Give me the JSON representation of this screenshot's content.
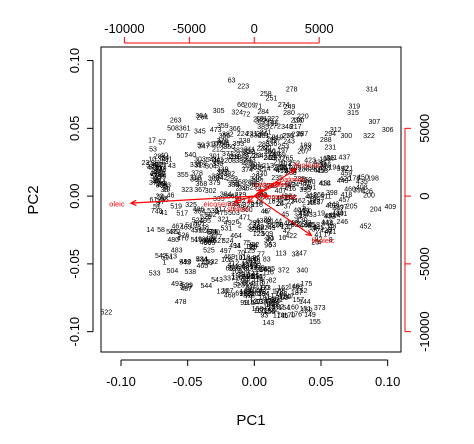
{
  "chart_data": {
    "type": "scatter",
    "title": "",
    "xlabel": "PC1",
    "ylabel": "PC2",
    "xlim": [
      -0.115,
      0.11
    ],
    "ylim": [
      -0.115,
      0.11
    ],
    "x_ticks": [
      -0.1,
      -0.05,
      0.0,
      0.05,
      0.1
    ],
    "x_tick_labels": [
      "-0.10",
      "-0.05",
      "0.00",
      "0.05",
      "0.10"
    ],
    "y_ticks": [
      -0.1,
      -0.05,
      0.0,
      0.05,
      0.1
    ],
    "y_tick_labels": [
      "-0.10",
      "-0.05",
      "0.00",
      "0.05",
      "0.10"
    ],
    "top_axis": {
      "lim": [
        -11800,
        11300
      ],
      "ticks": [
        -10000,
        -5000,
        0,
        5000
      ],
      "tick_labels": [
        "-10000",
        "-5000",
        "0",
        "5000"
      ],
      "color": "#ff0000"
    },
    "right_axis": {
      "lim": [
        -11500,
        11000
      ],
      "ticks": [
        -10000,
        -5000,
        0,
        5000
      ],
      "tick_labels": [
        "-10000",
        "-5000",
        "0",
        "5000"
      ],
      "color": "#ff0000"
    },
    "point_color": "#000000",
    "arrow_color": "#ff0000",
    "grid": false,
    "legend": "none",
    "loadings": [
      {
        "label": "oleic",
        "x": -9500,
        "y": -520
      },
      {
        "label": "linoleic",
        "x": 4400,
        "y": -2900
      },
      {
        "label": "linolenic",
        "x": 3200,
        "y": 2000
      },
      {
        "label": "palmitic",
        "x": 2000,
        "y": 1000
      },
      {
        "label": "stearic",
        "x": -500,
        "y": -500
      },
      {
        "label": "arachidic",
        "x": 1100,
        "y": 0
      },
      {
        "label": "eicosenoic",
        "x": -1500,
        "y": -400
      },
      {
        "label": "palmitoleic",
        "x": 600,
        "y": 500
      }
    ],
    "labeled_points": [
      {
        "label": "63",
        "x": -0.017,
        "y": 0.0862
      },
      {
        "label": "278",
        "x": 0.028,
        "y": 0.0794
      },
      {
        "label": "314",
        "x": 0.088,
        "y": 0.0794
      },
      {
        "label": "66",
        "x": -0.01,
        "y": 0.0679
      },
      {
        "label": "71",
        "x": 0.003,
        "y": 0.0667
      },
      {
        "label": "274",
        "x": 0.022,
        "y": 0.0679
      },
      {
        "label": "280",
        "x": 0.026,
        "y": 0.0621
      },
      {
        "label": "319",
        "x": 0.075,
        "y": 0.0667
      },
      {
        "label": "315",
        "x": 0.074,
        "y": 0.0621
      },
      {
        "label": "72",
        "x": -0.006,
        "y": 0.061
      },
      {
        "label": "264",
        "x": -0.039,
        "y": 0.0587
      },
      {
        "label": "263",
        "x": -0.059,
        "y": 0.0564
      },
      {
        "label": "190",
        "x": 0.033,
        "y": 0.0564
      },
      {
        "label": "307",
        "x": 0.09,
        "y": 0.0553
      },
      {
        "label": "306",
        "x": 0.1,
        "y": 0.0495
      },
      {
        "label": "508",
        "x": -0.061,
        "y": 0.0507
      },
      {
        "label": "473",
        "x": -0.029,
        "y": 0.0495
      },
      {
        "label": "217",
        "x": 0.031,
        "y": 0.0518
      },
      {
        "label": "312",
        "x": 0.061,
        "y": 0.0495
      },
      {
        "label": "322",
        "x": 0.086,
        "y": 0.0449
      },
      {
        "label": "507",
        "x": -0.054,
        "y": 0.0449
      },
      {
        "label": "300",
        "x": 0.069,
        "y": 0.0449
      },
      {
        "label": "281",
        "x": 0.007,
        "y": 0.0449
      },
      {
        "label": "59",
        "x": -0.04,
        "y": 0.0379
      },
      {
        "label": "785",
        "x": -0.023,
        "y": 0.0379
      },
      {
        "label": "231",
        "x": 0.057,
        "y": 0.0367
      },
      {
        "label": "540",
        "x": -0.048,
        "y": 0.031
      },
      {
        "label": "541",
        "x": -0.032,
        "y": 0.0275
      },
      {
        "label": "211",
        "x": 0.058,
        "y": 0.0287
      },
      {
        "label": "479",
        "x": -0.076,
        "y": 0.0218
      },
      {
        "label": "194",
        "x": 0.06,
        "y": 0.0218
      },
      {
        "label": "178",
        "x": 0.075,
        "y": 0.0138
      },
      {
        "label": "198",
        "x": 0.089,
        "y": 0.0138
      },
      {
        "label": "200",
        "x": 0.086,
        "y": 0.0011
      },
      {
        "label": "298",
        "x": -0.012,
        "y": -0.0069
      },
      {
        "label": "216",
        "x": 0.002,
        "y": -0.0058
      },
      {
        "label": "205",
        "x": 0.073,
        "y": -0.0069
      },
      {
        "label": "204",
        "x": 0.091,
        "y": -0.0092
      },
      {
        "label": "7",
        "x": -0.076,
        "y": -0.0104
      },
      {
        "label": "535",
        "x": -0.031,
        "y": -0.0104
      },
      {
        "label": "246",
        "x": 0.066,
        "y": -0.0184
      },
      {
        "label": "531",
        "x": -0.021,
        "y": -0.0231
      },
      {
        "label": "344",
        "x": -0.001,
        "y": -0.0231
      },
      {
        "label": "130",
        "x": 0.024,
        "y": -0.0219
      },
      {
        "label": "14",
        "x": -0.078,
        "y": -0.0242
      },
      {
        "label": "58",
        "x": -0.07,
        "y": -0.0242
      },
      {
        "label": "524",
        "x": -0.02,
        "y": -0.0323
      },
      {
        "label": "92",
        "x": 0.048,
        "y": -0.0311
      },
      {
        "label": "113",
        "x": 0.02,
        "y": -0.0415
      },
      {
        "label": "247",
        "x": 0.035,
        "y": -0.0415
      },
      {
        "label": "543",
        "x": -0.052,
        "y": -0.0484
      },
      {
        "label": "538",
        "x": -0.048,
        "y": -0.0553
      },
      {
        "label": "372",
        "x": 0.022,
        "y": -0.0541
      },
      {
        "label": "340",
        "x": 0.036,
        "y": -0.0541
      },
      {
        "label": "543",
        "x": -0.028,
        "y": -0.061
      },
      {
        "label": "337",
        "x": -0.019,
        "y": -0.0599
      },
      {
        "label": "544",
        "x": -0.036,
        "y": -0.0656
      },
      {
        "label": "393",
        "x": -0.004,
        "y": -0.0725
      },
      {
        "label": "394",
        "x": 0.007,
        "y": -0.0714
      },
      {
        "label": "373",
        "x": 0.049,
        "y": -0.0817
      },
      {
        "label": "412",
        "x": 0.014,
        "y": -0.0829
      },
      {
        "label": "522",
        "x": -0.111,
        "y": -0.0852
      }
    ],
    "dense_point_labels": [
      "1",
      "2",
      "3",
      "4",
      "5",
      "6",
      "8",
      "9",
      "10",
      "11",
      "12",
      "13",
      "15",
      "16",
      "17",
      "18",
      "19",
      "20",
      "21",
      "22",
      "23",
      "24",
      "25",
      "26",
      "27",
      "28",
      "29",
      "30",
      "31",
      "32",
      "33",
      "34",
      "35",
      "36",
      "37",
      "38",
      "39",
      "40",
      "41",
      "42",
      "43",
      "44",
      "45",
      "46",
      "47",
      "48",
      "49",
      "50",
      "51",
      "52",
      "53",
      "54",
      "55",
      "56",
      "57",
      "60",
      "61",
      "62",
      "64",
      "65",
      "67",
      "68",
      "69",
      "70",
      "73",
      "74",
      "75",
      "76",
      "77",
      "78",
      "79",
      "80",
      "81",
      "82",
      "83",
      "84",
      "85",
      "86",
      "87",
      "88",
      "89",
      "90",
      "91",
      "93",
      "94",
      "95",
      "96",
      "97",
      "98",
      "99",
      "100",
      "101",
      "102",
      "103",
      "104",
      "105",
      "106",
      "107",
      "108",
      "109",
      "110",
      "111",
      "112",
      "114",
      "115",
      "116",
      "117",
      "118",
      "119",
      "120",
      "121",
      "122",
      "123",
      "124",
      "125",
      "126",
      "127",
      "128",
      "129",
      "131",
      "132",
      "133",
      "134",
      "135",
      "136",
      "137",
      "138",
      "139",
      "140",
      "141",
      "142",
      "143",
      "144",
      "145",
      "146",
      "147",
      "148",
      "149",
      "150",
      "151",
      "152",
      "153",
      "154",
      "155",
      "156",
      "157",
      "158",
      "159",
      "160",
      "161",
      "162",
      "163",
      "164",
      "165",
      "166",
      "167",
      "168",
      "169",
      "170",
      "171",
      "172",
      "173",
      "174",
      "175",
      "176",
      "177",
      "179",
      "180",
      "181",
      "182",
      "183",
      "184",
      "185",
      "186",
      "187",
      "188",
      "189",
      "191",
      "192",
      "193",
      "195",
      "196",
      "197",
      "199",
      "201",
      "202",
      "203",
      "206",
      "207",
      "208",
      "209",
      "210",
      "212",
      "213",
      "214",
      "215",
      "218",
      "219",
      "220",
      "221",
      "222",
      "223",
      "224",
      "225",
      "226",
      "227",
      "228",
      "229",
      "230",
      "232",
      "233",
      "234",
      "235",
      "236",
      "237",
      "238",
      "239",
      "240",
      "241",
      "242",
      "243",
      "244",
      "245",
      "248",
      "249",
      "250",
      "251",
      "252",
      "253",
      "254",
      "255",
      "256",
      "257",
      "258",
      "259",
      "260",
      "261",
      "262",
      "265",
      "266",
      "267",
      "268",
      "269",
      "270",
      "271",
      "272",
      "273",
      "275",
      "276",
      "277",
      "279",
      "282",
      "283",
      "284",
      "285",
      "286",
      "287",
      "288",
      "289",
      "290",
      "291",
      "292",
      "293",
      "294",
      "295",
      "296",
      "297",
      "299",
      "301",
      "302",
      "303",
      "304",
      "305",
      "308",
      "309",
      "310",
      "311",
      "313",
      "316",
      "317",
      "318",
      "320",
      "321",
      "323",
      "324",
      "325",
      "326",
      "327",
      "328",
      "329",
      "330",
      "331",
      "332",
      "333",
      "334",
      "335",
      "336",
      "338",
      "339",
      "341",
      "342",
      "343",
      "345",
      "346",
      "347",
      "348",
      "349",
      "350",
      "351",
      "352",
      "353",
      "354",
      "355",
      "356",
      "357",
      "358",
      "359",
      "360",
      "361",
      "362",
      "363",
      "364",
      "365",
      "366",
      "367",
      "368",
      "369",
      "370",
      "371",
      "374",
      "375",
      "376",
      "377",
      "378",
      "379",
      "380",
      "381",
      "382",
      "383",
      "384",
      "385",
      "386",
      "387",
      "388",
      "389",
      "390",
      "391",
      "392",
      "395",
      "396",
      "397",
      "398",
      "399",
      "400",
      "401",
      "402",
      "403",
      "404",
      "405",
      "406",
      "407",
      "408",
      "409",
      "410",
      "411",
      "413",
      "414",
      "415",
      "416",
      "417",
      "418",
      "419",
      "420",
      "421",
      "422",
      "423",
      "424",
      "425",
      "426",
      "427",
      "428",
      "429",
      "430",
      "431",
      "432",
      "433",
      "434",
      "435",
      "436",
      "437",
      "438",
      "439",
      "440",
      "441",
      "442",
      "443",
      "444",
      "445",
      "446",
      "447",
      "448",
      "449",
      "450",
      "451",
      "452",
      "453",
      "454",
      "455",
      "456",
      "457",
      "458",
      "459",
      "460",
      "461",
      "462",
      "463",
      "464",
      "465",
      "466",
      "467",
      "468",
      "469",
      "470",
      "471",
      "472",
      "474",
      "475",
      "476",
      "477",
      "478",
      "480",
      "481",
      "482",
      "483",
      "484",
      "485",
      "486",
      "487",
      "488",
      "489",
      "490",
      "491",
      "492",
      "493",
      "494",
      "495",
      "496",
      "497",
      "498",
      "499",
      "500",
      "501",
      "502",
      "503",
      "504",
      "505",
      "506",
      "509",
      "510",
      "511",
      "512",
      "513",
      "514",
      "515",
      "516",
      "517",
      "518",
      "519",
      "520",
      "521",
      "523",
      "525",
      "526",
      "527",
      "528",
      "529",
      "530",
      "532",
      "533",
      "534",
      "536",
      "537",
      "539",
      "542"
    ],
    "dense_clusters": [
      {
        "cx": -0.071,
        "cy": 0.014,
        "sx": 0.004,
        "sy": 0.012,
        "n": 60
      },
      {
        "cx": -0.003,
        "cy": -0.057,
        "sx": 0.008,
        "sy": 0.012,
        "n": 70
      },
      {
        "cx": 0.025,
        "cy": -0.079,
        "sx": 0.013,
        "sy": 0.006,
        "n": 45
      },
      {
        "cx": 0.018,
        "cy": 0.03,
        "sx": 0.018,
        "sy": 0.02,
        "n": 90
      },
      {
        "cx": -0.025,
        "cy": 0.02,
        "sx": 0.02,
        "sy": 0.02,
        "n": 80
      },
      {
        "cx": 0.052,
        "cy": 0.0,
        "sx": 0.02,
        "sy": 0.015,
        "n": 70
      },
      {
        "cx": -0.035,
        "cy": -0.035,
        "sx": 0.02,
        "sy": 0.018,
        "n": 70
      },
      {
        "cx": 0.025,
        "cy": -0.02,
        "sx": 0.015,
        "sy": 0.012,
        "n": 50
      }
    ]
  }
}
